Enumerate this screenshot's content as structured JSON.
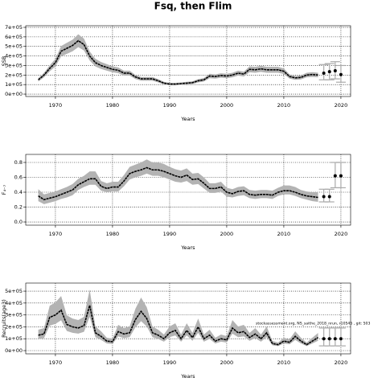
{
  "title": "Fsq, then Flim",
  "chart_data": [
    {
      "type": "line",
      "ylabel": "SSB",
      "xlabel": "Years",
      "xlim": [
        1964.8,
        2021.7
      ],
      "xticks": [
        1970,
        1980,
        1990,
        2000,
        2010,
        2020
      ],
      "ylim": [
        -25000,
        717000
      ],
      "yticks": [
        {
          "value": 0,
          "label": "0e+00"
        },
        {
          "value": 100000,
          "label": "1e+05"
        },
        {
          "value": 200000,
          "label": "2e+05"
        },
        {
          "value": 300000,
          "label": "3e+05"
        },
        {
          "value": 400000,
          "label": "4e+05"
        },
        {
          "value": 500000,
          "label": "5e+05"
        },
        {
          "value": 600000,
          "label": "6e+05"
        },
        {
          "value": 700000,
          "label": "7e+05"
        }
      ],
      "grid": true,
      "color": "#000000",
      "band_color": "#b3b3b3",
      "forecast_color": "#aaaaaa",
      "x": [
        1967,
        1968,
        1969,
        1970,
        1971,
        1972,
        1973,
        1974,
        1975,
        1976,
        1977,
        1978,
        1979,
        1980,
        1981,
        1982,
        1983,
        1984,
        1985,
        1986,
        1987,
        1988,
        1989,
        1990,
        1991,
        1992,
        1993,
        1994,
        1995,
        1996,
        1997,
        1998,
        1999,
        2000,
        2001,
        2002,
        2003,
        2004,
        2005,
        2006,
        2007,
        2008,
        2009,
        2010,
        2011,
        2012,
        2013,
        2014,
        2015,
        2016
      ],
      "values": [
        150000,
        200000,
        270000,
        330000,
        450000,
        480000,
        510000,
        560000,
        520000,
        400000,
        330000,
        300000,
        280000,
        260000,
        250000,
        220000,
        220000,
        180000,
        160000,
        160000,
        160000,
        140000,
        115000,
        105000,
        105000,
        110000,
        115000,
        120000,
        140000,
        150000,
        190000,
        185000,
        195000,
        190000,
        200000,
        220000,
        210000,
        260000,
        255000,
        265000,
        255000,
        255000,
        255000,
        240000,
        185000,
        170000,
        175000,
        200000,
        205000,
        200000
      ],
      "lower": [
        132000,
        176000,
        238000,
        290000,
        396000,
        422000,
        449000,
        493000,
        458000,
        352000,
        290000,
        264000,
        246000,
        229000,
        220000,
        194000,
        194000,
        158000,
        141000,
        141000,
        141000,
        123000,
        101000,
        92000,
        92000,
        97000,
        101000,
        106000,
        123000,
        132000,
        167000,
        163000,
        172000,
        167000,
        176000,
        194000,
        185000,
        229000,
        224000,
        233000,
        224000,
        224000,
        224000,
        211000,
        163000,
        150000,
        154000,
        176000,
        180000,
        176000
      ],
      "upper": [
        168000,
        224000,
        302000,
        370000,
        504000,
        538000,
        571000,
        627000,
        582000,
        448000,
        370000,
        336000,
        314000,
        291000,
        280000,
        246000,
        246000,
        202000,
        179000,
        179000,
        179000,
        157000,
        129000,
        118000,
        118000,
        123000,
        129000,
        134000,
        157000,
        168000,
        213000,
        207000,
        218000,
        213000,
        224000,
        246000,
        235000,
        291000,
        286000,
        297000,
        286000,
        286000,
        286000,
        269000,
        207000,
        190000,
        196000,
        224000,
        230000,
        224000
      ],
      "forecast": {
        "x": [
          2017,
          2018,
          2019,
          2020
        ],
        "values": [
          220000,
          235000,
          245000,
          205000
        ],
        "lower": [
          150000,
          150000,
          160000,
          125000
        ],
        "upper": [
          310000,
          320000,
          340000,
          300000
        ]
      }
    },
    {
      "type": "line",
      "ylabel": "F₄₋₇",
      "xlabel": "Years",
      "xlim": [
        1964.8,
        2021.7
      ],
      "xticks": [
        1970,
        1980,
        1990,
        2000,
        2010,
        2020
      ],
      "ylim": [
        -0.043,
        0.908
      ],
      "yticks": [
        {
          "value": 0,
          "label": "0.0"
        },
        0.2,
        0.4,
        0.6,
        0.8
      ],
      "grid": true,
      "color": "#000000",
      "band_color": "#b3b3b3",
      "forecast_color": "#aaaaaa",
      "x": [
        1967,
        1968,
        1969,
        1970,
        1971,
        1972,
        1973,
        1974,
        1975,
        1976,
        1977,
        1978,
        1979,
        1980,
        1981,
        1982,
        1983,
        1984,
        1985,
        1986,
        1987,
        1988,
        1989,
        1990,
        1991,
        1992,
        1993,
        1994,
        1995,
        1996,
        1997,
        1998,
        1999,
        2000,
        2001,
        2002,
        2003,
        2004,
        2005,
        2006,
        2007,
        2008,
        2009,
        2010,
        2011,
        2012,
        2013,
        2014,
        2015,
        2016
      ],
      "values": [
        0.35,
        0.3,
        0.32,
        0.34,
        0.37,
        0.4,
        0.43,
        0.5,
        0.54,
        0.58,
        0.58,
        0.48,
        0.45,
        0.47,
        0.47,
        0.55,
        0.65,
        0.68,
        0.7,
        0.73,
        0.7,
        0.7,
        0.68,
        0.65,
        0.62,
        0.6,
        0.63,
        0.57,
        0.58,
        0.52,
        0.45,
        0.45,
        0.47,
        0.4,
        0.38,
        0.41,
        0.42,
        0.37,
        0.36,
        0.37,
        0.37,
        0.36,
        0.4,
        0.42,
        0.42,
        0.4,
        0.37,
        0.35,
        0.34,
        0.33
      ],
      "lower": [
        0.28,
        0.24,
        0.26,
        0.28,
        0.31,
        0.33,
        0.36,
        0.43,
        0.47,
        0.5,
        0.5,
        0.42,
        0.4,
        0.41,
        0.41,
        0.48,
        0.57,
        0.6,
        0.62,
        0.65,
        0.62,
        0.62,
        0.6,
        0.57,
        0.54,
        0.53,
        0.55,
        0.5,
        0.51,
        0.45,
        0.39,
        0.39,
        0.41,
        0.34,
        0.33,
        0.35,
        0.36,
        0.32,
        0.31,
        0.32,
        0.32,
        0.31,
        0.35,
        0.37,
        0.37,
        0.35,
        0.32,
        0.3,
        0.28,
        0.27
      ],
      "upper": [
        0.44,
        0.37,
        0.39,
        0.41,
        0.44,
        0.47,
        0.51,
        0.58,
        0.62,
        0.68,
        0.68,
        0.55,
        0.52,
        0.54,
        0.54,
        0.63,
        0.74,
        0.77,
        0.8,
        0.84,
        0.8,
        0.8,
        0.78,
        0.74,
        0.71,
        0.69,
        0.72,
        0.65,
        0.66,
        0.6,
        0.52,
        0.52,
        0.54,
        0.46,
        0.44,
        0.47,
        0.48,
        0.43,
        0.42,
        0.43,
        0.43,
        0.42,
        0.46,
        0.49,
        0.49,
        0.47,
        0.43,
        0.41,
        0.4,
        0.4
      ],
      "forecast": {
        "x": [
          2017,
          2018,
          2019,
          2020
        ],
        "values": [
          0.34,
          0.34,
          0.62,
          0.62
        ],
        "lower": [
          0.27,
          0.27,
          0.46,
          0.46
        ],
        "upper": [
          0.44,
          0.44,
          0.8,
          0.8
        ]
      }
    },
    {
      "type": "line",
      "ylabel": "Recruits(age3)",
      "xlabel": "Years",
      "xlim": [
        1964.8,
        2021.7
      ],
      "xticks": [
        1970,
        1980,
        1990,
        2000,
        2010,
        2020
      ],
      "ylim": [
        -27000,
        568000
      ],
      "yticks": [
        {
          "value": 0,
          "label": "0e+00"
        },
        {
          "value": 100000,
          "label": "1e+05"
        },
        {
          "value": 200000,
          "label": "2e+05"
        },
        {
          "value": 300000,
          "label": "3e+05"
        },
        {
          "value": 400000,
          "label": "4e+05"
        },
        {
          "value": 500000,
          "label": "5e+05"
        }
      ],
      "grid": true,
      "color": "#000000",
      "band_color": "#b3b3b3",
      "forecast_color": "#aaaaaa",
      "annotation": "stockassessment.org, NS_saithe_2018_nrun, r10545 , git: 503",
      "x": [
        1967,
        1968,
        1969,
        1970,
        1971,
        1972,
        1973,
        1974,
        1975,
        1976,
        1977,
        1978,
        1979,
        1980,
        1981,
        1982,
        1983,
        1984,
        1985,
        1986,
        1987,
        1988,
        1989,
        1990,
        1991,
        1992,
        1993,
        1994,
        1995,
        1996,
        1997,
        1998,
        1999,
        2000,
        2001,
        2002,
        2003,
        2004,
        2005,
        2006,
        2007,
        2008,
        2009,
        2010,
        2011,
        2012,
        2013,
        2014,
        2015,
        2016
      ],
      "values": [
        130000,
        140000,
        280000,
        300000,
        340000,
        220000,
        200000,
        190000,
        210000,
        380000,
        150000,
        120000,
        80000,
        75000,
        160000,
        140000,
        150000,
        260000,
        330000,
        270000,
        150000,
        130000,
        100000,
        150000,
        170000,
        100000,
        170000,
        110000,
        200000,
        100000,
        130000,
        80000,
        100000,
        90000,
        190000,
        150000,
        160000,
        110000,
        140000,
        100000,
        150000,
        60000,
        50000,
        80000,
        70000,
        120000,
        80000,
        50000,
        80000,
        110000
      ],
      "lower": [
        98000,
        105000,
        210000,
        225000,
        255000,
        165000,
        150000,
        143000,
        158000,
        285000,
        113000,
        90000,
        60000,
        56000,
        120000,
        105000,
        113000,
        195000,
        248000,
        203000,
        113000,
        98000,
        75000,
        113000,
        128000,
        75000,
        128000,
        83000,
        150000,
        75000,
        98000,
        60000,
        75000,
        68000,
        143000,
        113000,
        120000,
        83000,
        105000,
        75000,
        113000,
        45000,
        38000,
        60000,
        53000,
        90000,
        60000,
        38000,
        60000,
        83000
      ],
      "upper": [
        176000,
        189000,
        378000,
        405000,
        459000,
        297000,
        270000,
        257000,
        284000,
        513000,
        203000,
        162000,
        108000,
        101000,
        216000,
        189000,
        203000,
        351000,
        446000,
        365000,
        203000,
        176000,
        135000,
        203000,
        230000,
        135000,
        230000,
        149000,
        270000,
        135000,
        176000,
        108000,
        135000,
        122000,
        257000,
        203000,
        216000,
        149000,
        189000,
        135000,
        203000,
        81000,
        68000,
        108000,
        95000,
        162000,
        108000,
        68000,
        108000,
        149000
      ],
      "forecast": {
        "x": [
          2017,
          2018,
          2019,
          2020
        ],
        "values": [
          100000,
          100000,
          100000,
          100000
        ],
        "lower": [
          40000,
          40000,
          40000,
          40000
        ],
        "upper": [
          190000,
          190000,
          190000,
          190000
        ]
      }
    }
  ]
}
